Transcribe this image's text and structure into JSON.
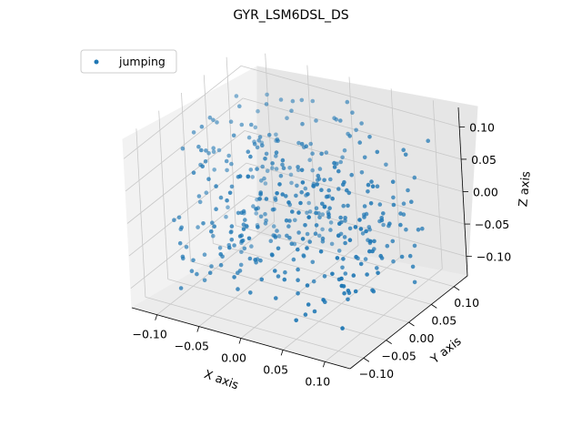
{
  "chart_data": {
    "type": "scatter",
    "projection": "3d",
    "title": "GYR_LSM6DSL_DS",
    "xlabel": "X axis",
    "ylabel": "Y axis",
    "zlabel": "Z axis",
    "xlim": [
      -0.13,
      0.13
    ],
    "ylim": [
      -0.13,
      0.13
    ],
    "zlim": [
      -0.13,
      0.13
    ],
    "xticks": [
      "−0.10",
      "−0.05",
      "0.00",
      "0.05",
      "0.10"
    ],
    "yticks": [
      "−0.10",
      "−0.05",
      "0.00",
      "0.05",
      "0.10"
    ],
    "zticks": [
      "−0.10",
      "−0.05",
      "0.00",
      "0.05",
      "0.10"
    ],
    "grid": true,
    "legend_position": "upper-left",
    "series": [
      {
        "name": "jumping",
        "color": "#1f77b4",
        "num_points": 420,
        "distribution": "uniform cloud in x, y, z within roughly ±0.11"
      }
    ]
  }
}
